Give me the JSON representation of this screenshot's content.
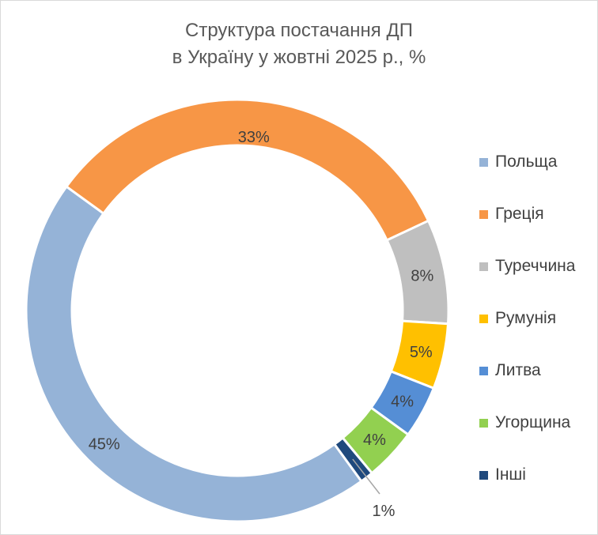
{
  "chart_data": {
    "type": "pie",
    "variant": "donut",
    "title_line1": "Структура постачання ДП",
    "title_line2": "в Україну у жовтні 2025 р., %",
    "categories": [
      "Польща",
      "Греція",
      "Туреччина",
      "Румунія",
      "Литва",
      "Угорщина",
      "Інші"
    ],
    "values": [
      45,
      33,
      8,
      5,
      4,
      4,
      1
    ],
    "labels": [
      "45%",
      "33%",
      "8%",
      "5%",
      "4%",
      "4%",
      "1%"
    ],
    "colors": [
      "#95B3D7",
      "#F79646",
      "#BFBFBF",
      "#FFC000",
      "#558ED5",
      "#92D050",
      "#1F497D"
    ],
    "legend_position": "right"
  }
}
